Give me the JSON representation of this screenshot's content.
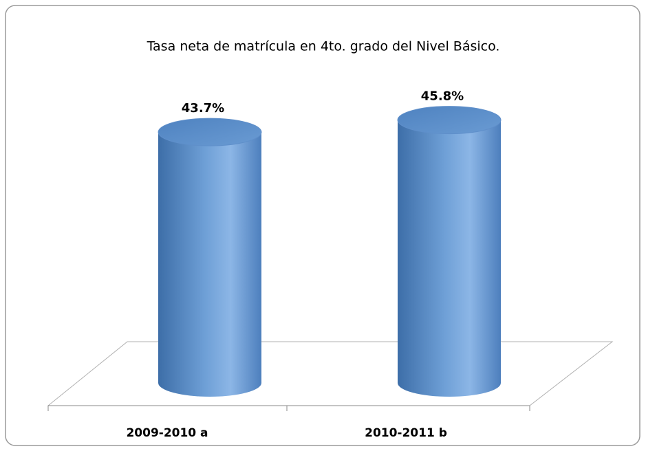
{
  "chart_data": {
    "type": "cylinder-bar",
    "title": "Tasa neta de matrícula en 4to. grado del Nivel Básico.",
    "categories": [
      "2009-2010 a",
      "2010-2011 b"
    ],
    "values": [
      43.7,
      45.8
    ],
    "value_labels": [
      "43.7%",
      "45.8%"
    ],
    "color": "#4f81bd"
  }
}
